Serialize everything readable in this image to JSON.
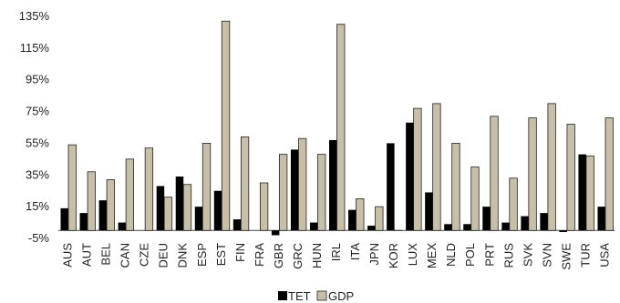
{
  "chart_data": {
    "type": "bar",
    "title": "",
    "xlabel": "",
    "ylabel": "",
    "ylim": [
      -5,
      135
    ],
    "yticks": [
      -5,
      15,
      35,
      55,
      75,
      95,
      115,
      135
    ],
    "ytick_labels": [
      "-5%",
      "15%",
      "35%",
      "55%",
      "75%",
      "95%",
      "115%",
      "135%"
    ],
    "grid": false,
    "legend_position": "bottom-center",
    "categories": [
      "AUS",
      "AUT",
      "BEL",
      "CAN",
      "CZE",
      "DEU",
      "DNK",
      "ESP",
      "EST",
      "FIN",
      "FRA",
      "GBR",
      "GRC",
      "HUN",
      "IRL",
      "ITA",
      "JPN",
      "KOR",
      "LUX",
      "MEX",
      "NLD",
      "POL",
      "PRT",
      "RUS",
      "SVK",
      "SVN",
      "SWE",
      "TUR",
      "USA"
    ],
    "series": [
      {
        "name": "TET",
        "color": "#000000",
        "values": [
          14,
          11,
          19,
          5,
          0,
          28,
          34,
          15,
          25,
          7,
          0,
          -3,
          51,
          5,
          57,
          13,
          3,
          55,
          68,
          24,
          4,
          4,
          15,
          5,
          9,
          11,
          -1,
          48,
          15
        ]
      },
      {
        "name": "GDP",
        "color": "#c8bfa9",
        "values": [
          54,
          37,
          32,
          45,
          52,
          21,
          29,
          55,
          132,
          59,
          30,
          48,
          58,
          48,
          130,
          20,
          15,
          0,
          77,
          80,
          55,
          40,
          72,
          33,
          71,
          80,
          67,
          47,
          71
        ]
      }
    ]
  }
}
